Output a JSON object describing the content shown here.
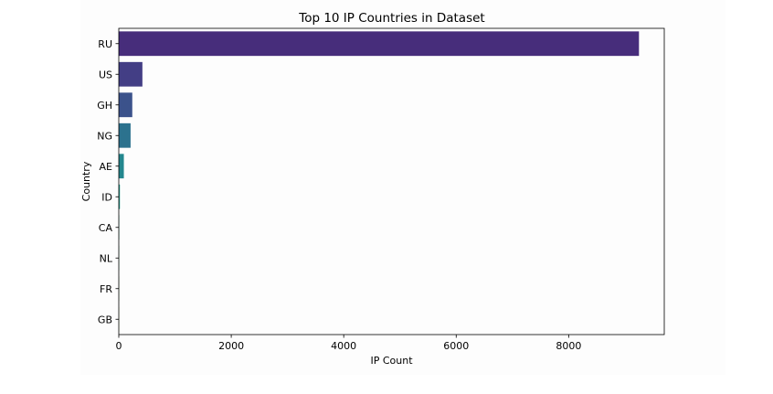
{
  "chart_data": {
    "type": "bar",
    "orientation": "horizontal",
    "title": "Top 10 IP Countries in Dataset",
    "xlabel": "IP Count",
    "ylabel": "Country",
    "categories": [
      "RU",
      "US",
      "GH",
      "NG",
      "AE",
      "ID",
      "CA",
      "NL",
      "FR",
      "GB"
    ],
    "values": [
      9250,
      420,
      240,
      210,
      90,
      20,
      8,
      6,
      5,
      4
    ],
    "colors": [
      "#472d7b",
      "#433e85",
      "#3b528b",
      "#2c728e",
      "#24878e",
      "#1f9a8a",
      "#27ad81",
      "#47c16e",
      "#75d054",
      "#addc30"
    ],
    "xlim": [
      0,
      9700
    ],
    "xticks": [
      0,
      2000,
      4000,
      6000,
      8000
    ],
    "xtick_labels": [
      "0",
      "2000",
      "4000",
      "6000",
      "8000"
    ],
    "grid": false
  }
}
